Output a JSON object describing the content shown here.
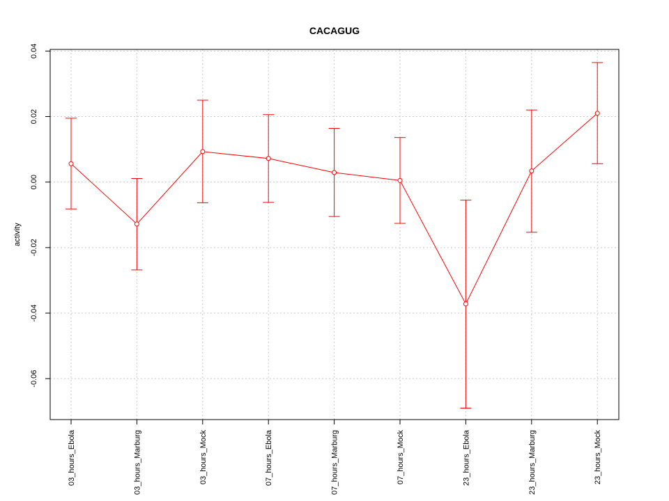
{
  "chart_data": {
    "type": "line",
    "title": "CACAGUG",
    "xlabel": "",
    "ylabel": "activity",
    "categories": [
      "03_hours_Ebola",
      "03_hours_Marburg",
      "03_hours_Mock",
      "07_hours_Ebola",
      "07_hours_Marburg",
      "07_hours_Mock",
      "23_hours_Ebola",
      "23_hours_Marburg",
      "23_hours_Mock"
    ],
    "series": [
      {
        "values": [
          0.0056,
          -0.0128,
          0.0093,
          0.0072,
          0.0029,
          0.0005,
          -0.0372,
          0.0034,
          0.021
        ],
        "lower": [
          -0.0082,
          -0.0268,
          -0.0063,
          -0.0062,
          -0.0105,
          -0.0126,
          -0.069,
          -0.0153,
          0.0056
        ],
        "upper": [
          0.0195,
          0.0011,
          0.025,
          0.0206,
          0.0164,
          0.0136,
          -0.0055,
          0.022,
          0.0365
        ]
      }
    ],
    "yticks": [
      -0.06,
      -0.04,
      -0.02,
      0.0,
      0.02,
      0.04
    ],
    "ytick_labels": [
      "-0.06",
      "-0.04",
      "-0.02",
      "0.00",
      "0.02",
      "0.04"
    ],
    "ylim": [
      -0.0725,
      0.0405
    ],
    "grid": true,
    "legend": "none",
    "colors": {
      "series": "#ff0000",
      "grid": "#c8c8c8",
      "axis": "#000000"
    }
  }
}
